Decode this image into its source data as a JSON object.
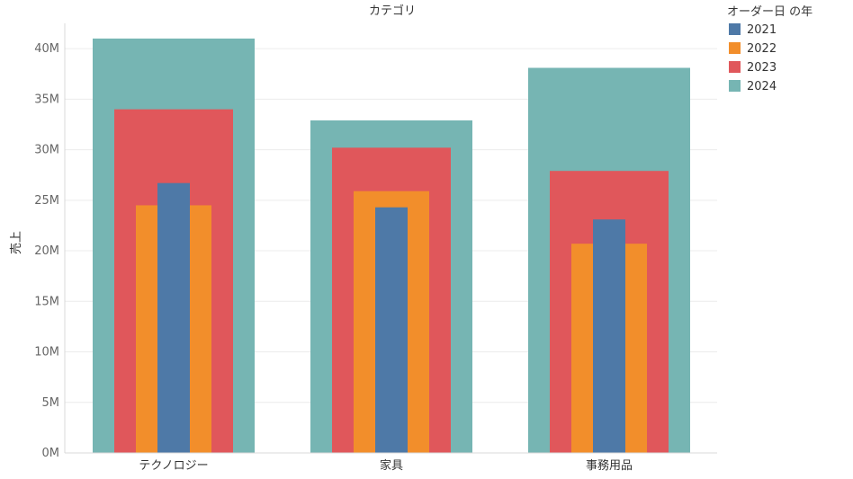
{
  "chart_data": {
    "type": "bar",
    "layout": "overlapping-nested-bars",
    "title": "カテゴリ",
    "xlabel": "カテゴリ",
    "ylabel": "売上",
    "categories": [
      "テクノロジー",
      "家具",
      "事務用品"
    ],
    "series": [
      {
        "name": "2024",
        "color": "#76b5b3",
        "values": [
          41.0,
          32.9,
          38.1
        ]
      },
      {
        "name": "2023",
        "color": "#e0575b",
        "values": [
          34.0,
          30.2,
          27.9
        ]
      },
      {
        "name": "2022",
        "color": "#f28e2b",
        "values": [
          24.5,
          25.9,
          20.7
        ]
      },
      {
        "name": "2021",
        "color": "#4e79a7",
        "values": [
          26.7,
          24.3,
          23.1
        ]
      }
    ],
    "ylim": [
      0,
      42.5
    ],
    "yticks": [
      {
        "value": 0,
        "label": "0M"
      },
      {
        "value": 5,
        "label": "5M"
      },
      {
        "value": 10,
        "label": "10M"
      },
      {
        "value": 15,
        "label": "15M"
      },
      {
        "value": 20,
        "label": "20M"
      },
      {
        "value": 25,
        "label": "25M"
      },
      {
        "value": 30,
        "label": "30M"
      },
      {
        "value": 35,
        "label": "35M"
      },
      {
        "value": 40,
        "label": "40M"
      }
    ],
    "grid": true,
    "legend": {
      "title": "オーダー日 の年",
      "position": "top-right",
      "items": [
        {
          "name": "2021",
          "color": "#4e79a7"
        },
        {
          "name": "2022",
          "color": "#f28e2b"
        },
        {
          "name": "2023",
          "color": "#e0575b"
        },
        {
          "name": "2024",
          "color": "#76b5b3"
        }
      ]
    }
  }
}
